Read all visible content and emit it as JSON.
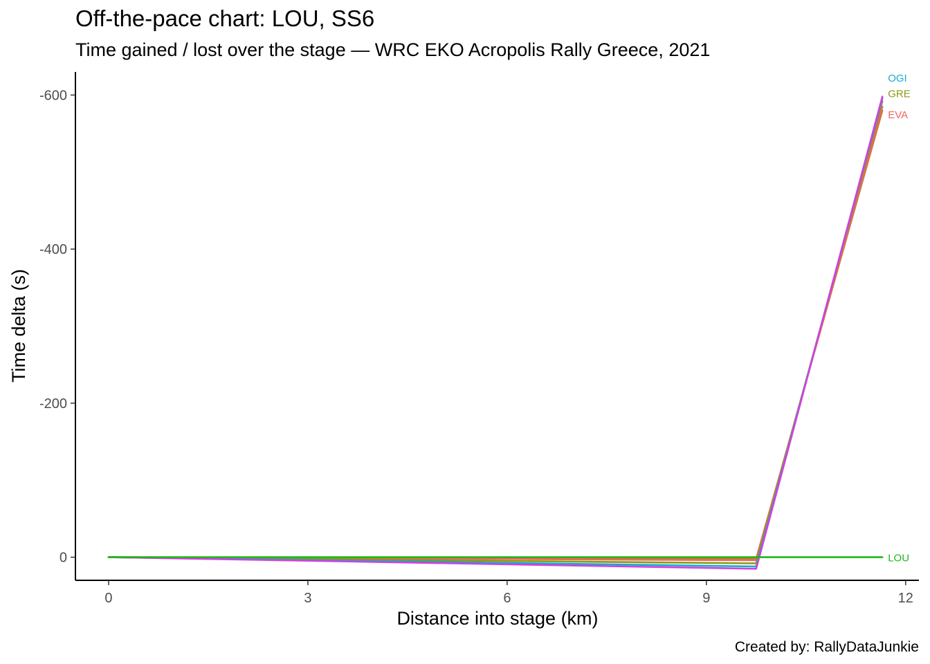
{
  "chart_data": {
    "type": "line",
    "title": "Off-the-pace chart: LOU, SS6",
    "subtitle": "Time gained / lost over the stage — WRC EKO Acropolis Rally Greece, 2021",
    "caption": "Created by: RallyDataJunkie",
    "xlabel": "Distance into stage (km)",
    "ylabel": "Time delta (s)",
    "xlim": [
      -0.5,
      12.2
    ],
    "ylim": [
      -630,
      30
    ],
    "y_reversed": true,
    "x_ticks": [
      0,
      3,
      6,
      9,
      12
    ],
    "y_ticks": [
      0,
      -200,
      -400,
      -600
    ],
    "x_tick_labels": [
      "0",
      "3",
      "6",
      "9",
      "12"
    ],
    "y_tick_labels": [
      "0",
      "-200",
      "-400",
      "-600"
    ],
    "grid": false,
    "legend": "none",
    "direct_labels": true,
    "x": [
      0,
      9.75,
      11.65
    ],
    "series": [
      {
        "name": "LOU",
        "color": "#1DB814",
        "values": [
          0,
          0,
          0
        ]
      },
      {
        "name": "EVA",
        "color": "#F06560",
        "values": [
          0,
          4,
          -585
        ]
      },
      {
        "name": "GRE",
        "color": "#8A9A10",
        "values": [
          0,
          8,
          -592
        ]
      },
      {
        "name": "OGI",
        "color": "#11ABCF",
        "values": [
          0,
          12,
          -596
        ]
      },
      {
        "value_label": "",
        "color": "#C97A2E",
        "values": [
          0,
          2,
          -580
        ]
      },
      {
        "value_label": "",
        "color": "#D43FE0",
        "values": [
          0,
          15,
          -598
        ]
      }
    ]
  }
}
